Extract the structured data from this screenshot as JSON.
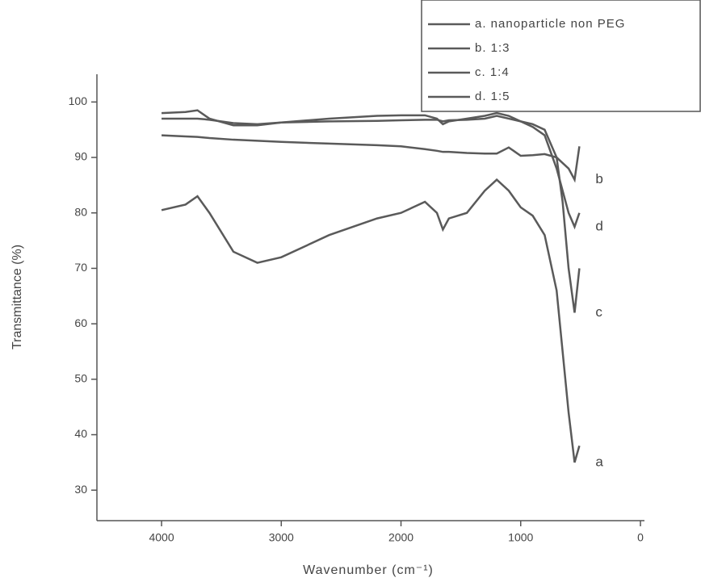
{
  "chart_data": {
    "type": "line",
    "xlabel": "Wavenumber (cm⁻¹)",
    "ylabel": "Transmittance (%)",
    "x": [
      4000,
      3800,
      3700,
      3600,
      3400,
      3200,
      3000,
      2600,
      2200,
      2000,
      1800,
      1700,
      1650,
      1600,
      1450,
      1300,
      1200,
      1100,
      1000,
      900,
      800,
      700,
      650,
      600,
      550,
      510
    ],
    "series": [
      {
        "name": "a. nanoparticle non PEG",
        "color": "#5a5a5a",
        "values": [
          80.5,
          81.5,
          83,
          80,
          73,
          71,
          72,
          76,
          79,
          80,
          82,
          80,
          77,
          79,
          80,
          84,
          86,
          84,
          81,
          79.5,
          76,
          66,
          55,
          44,
          35,
          38
        ]
      },
      {
        "name": "b. 1:3",
        "color": "#5a5a5a",
        "values": [
          94,
          93.8,
          93.7,
          93.5,
          93.2,
          93,
          92.8,
          92.5,
          92.2,
          92,
          91.5,
          91.2,
          91,
          91,
          90.8,
          90.7,
          90.7,
          91.8,
          90.3,
          90.4,
          90.6,
          90,
          89,
          88,
          86,
          92
        ]
      },
      {
        "name": "c. 1:4",
        "color": "#5a5a5a",
        "values": [
          97,
          97,
          97,
          96.8,
          96.2,
          96,
          96.3,
          96.5,
          96.6,
          96.7,
          96.8,
          96.8,
          96.5,
          96.7,
          96.8,
          97,
          97.5,
          97,
          96.5,
          96,
          95,
          90,
          82,
          70,
          62,
          70
        ]
      },
      {
        "name": "d. 1:5",
        "color": "#5a5a5a",
        "values": [
          98,
          98.2,
          98.5,
          97,
          95.8,
          95.8,
          96.3,
          97,
          97.5,
          97.6,
          97.6,
          97,
          96,
          96.5,
          97,
          97.5,
          98,
          97.5,
          96.5,
          95.5,
          94,
          88,
          84,
          80,
          77.5,
          80
        ]
      }
    ],
    "annotations": [
      "a",
      "b",
      "c",
      "d"
    ],
    "xlim": [
      4540,
      0
    ],
    "xticks": [
      4000,
      3000,
      2000,
      1000,
      0
    ],
    "ylim": [
      24.5,
      105
    ],
    "yticks": [
      30,
      40,
      50,
      60,
      70,
      80,
      90,
      100
    ],
    "legend": "top-right"
  }
}
